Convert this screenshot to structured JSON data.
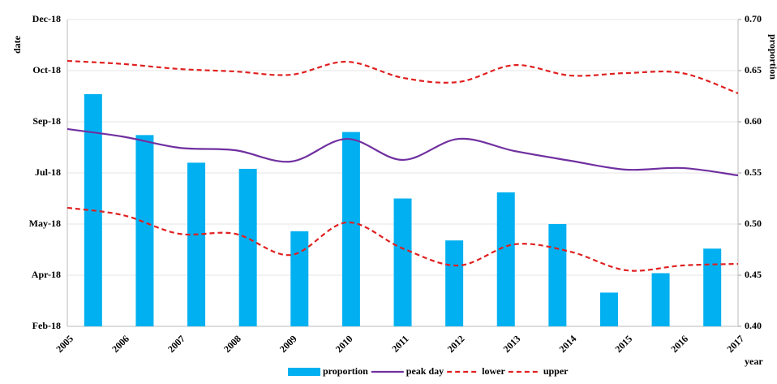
{
  "chart_data": {
    "type": "combo",
    "x_label": "year",
    "y_label": "date",
    "y2_label": "proportion",
    "categories": [
      "2005",
      "2006",
      "2007",
      "2008",
      "2009",
      "2010",
      "2011",
      "2012",
      "2013",
      "2014",
      "2015",
      "2016",
      "2017"
    ],
    "ylim": [
      50,
      350
    ],
    "yticks": [
      {
        "value": 50,
        "label": "Feb-18"
      },
      {
        "value": 100,
        "label": "Apr-18"
      },
      {
        "value": 150,
        "label": "May-18"
      },
      {
        "value": 200,
        "label": "Jul-18"
      },
      {
        "value": 250,
        "label": "Sep-18"
      },
      {
        "value": 300,
        "label": "Oct-18"
      },
      {
        "value": 350,
        "label": "Dec-18"
      }
    ],
    "y2lim": [
      0.4,
      0.7
    ],
    "y2ticks": [
      {
        "value": 0.4,
        "label": "0.40"
      },
      {
        "value": 0.45,
        "label": "0.45"
      },
      {
        "value": 0.5,
        "label": "0.50"
      },
      {
        "value": 0.55,
        "label": "0.55"
      },
      {
        "value": 0.6,
        "label": "0.60"
      },
      {
        "value": 0.65,
        "label": "0.65"
      },
      {
        "value": 0.7,
        "label": "0.70"
      }
    ],
    "grid": true,
    "series": [
      {
        "name": "proportion",
        "type": "bar",
        "axis": "y2",
        "color": "#00b0f0",
        "values": [
          0.627,
          0.587,
          0.56,
          0.554,
          0.493,
          0.59,
          0.525,
          0.484,
          0.531,
          0.5,
          0.433,
          0.452,
          0.476
        ]
      },
      {
        "name": "peak day",
        "type": "line",
        "color": "#7030a0",
        "dashed": false,
        "values": [
          242.9,
          235.4,
          224.6,
          222.2,
          211.1,
          233.3,
          212.7,
          233.3,
          221.4,
          211.9,
          203.2,
          204.8,
          197.6
        ]
      },
      {
        "name": "lower",
        "type": "line",
        "color": "#e02020",
        "dashed": true,
        "values": [
          165.9,
          158.7,
          140.5,
          140.5,
          119.8,
          151.6,
          126.2,
          109.5,
          130.2,
          123,
          104.8,
          109.5,
          111.1
        ]
      },
      {
        "name": "upper",
        "type": "line",
        "color": "#e02020",
        "dashed": true,
        "values": [
          309.5,
          306.5,
          301.6,
          299.2,
          296,
          308.7,
          293,
          288.9,
          305.4,
          295.2,
          297.6,
          297.6,
          277.8
        ]
      }
    ]
  }
}
